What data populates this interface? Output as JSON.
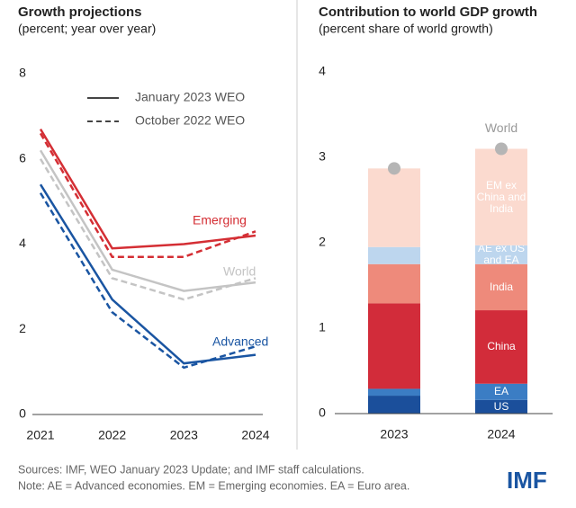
{
  "chart_data": [
    {
      "type": "line",
      "title": "Growth projections",
      "subtitle": "(percent; year over year)",
      "categories": [
        "2021",
        "2022",
        "2023",
        "2024"
      ],
      "legend": [
        {
          "name": "January 2023 WEO",
          "dash": false
        },
        {
          "name": "October 2022 WEO",
          "dash": true
        }
      ],
      "series": [
        {
          "name": "Emerging",
          "color": "#d42e34",
          "values": [
            [
              6.7,
              3.9,
              4.0,
              4.2
            ],
            [
              6.6,
              3.7,
              3.7,
              4.3
            ]
          ]
        },
        {
          "name": "World",
          "color": "#c4c4c4",
          "values": [
            [
              6.2,
              3.4,
              2.9,
              3.1
            ],
            [
              6.0,
              3.2,
              2.7,
              3.2
            ]
          ]
        },
        {
          "name": "Advanced",
          "color": "#1a55a2",
          "values": [
            [
              5.4,
              2.7,
              1.2,
              1.4
            ],
            [
              5.2,
              2.4,
              1.1,
              1.6
            ]
          ]
        }
      ],
      "ylim": [
        0,
        8
      ],
      "yticks": [
        0,
        2,
        4,
        6,
        8
      ]
    },
    {
      "type": "bar",
      "stacked": true,
      "title": "Contribution to world GDP growth",
      "subtitle": "(percent share of world growth)",
      "categories": [
        "2023",
        "2024"
      ],
      "series": [
        {
          "name": "US",
          "color": "#1b4f9b",
          "values": [
            0.21,
            0.16
          ]
        },
        {
          "name": "EA",
          "color": "#3b7dc4",
          "values": [
            0.08,
            0.19
          ]
        },
        {
          "name": "China",
          "color": "#d22c3a",
          "values": [
            1.0,
            0.86
          ]
        },
        {
          "name": "India",
          "color": "#ee8a7b",
          "values": [
            0.46,
            0.54
          ]
        },
        {
          "name": "AE ex US and EA",
          "color": "#bdd6ee",
          "values": [
            0.2,
            0.22
          ]
        },
        {
          "name": "EM ex China and India",
          "color": "#fbdacf",
          "values": [
            0.92,
            1.13
          ]
        }
      ],
      "total": {
        "name": "World",
        "color": "#b5b5b5",
        "values": [
          2.87,
          3.1
        ]
      },
      "ylim": [
        0,
        4
      ],
      "yticks": [
        0,
        1,
        2,
        3,
        4
      ]
    }
  ],
  "footer": {
    "sources": "Sources: IMF, WEO January 2023 Update; and IMF staff calculations.",
    "note": "Note: AE = Advanced economies.  EM = Emerging economies. EA = Euro area.",
    "logo": "IMF"
  }
}
